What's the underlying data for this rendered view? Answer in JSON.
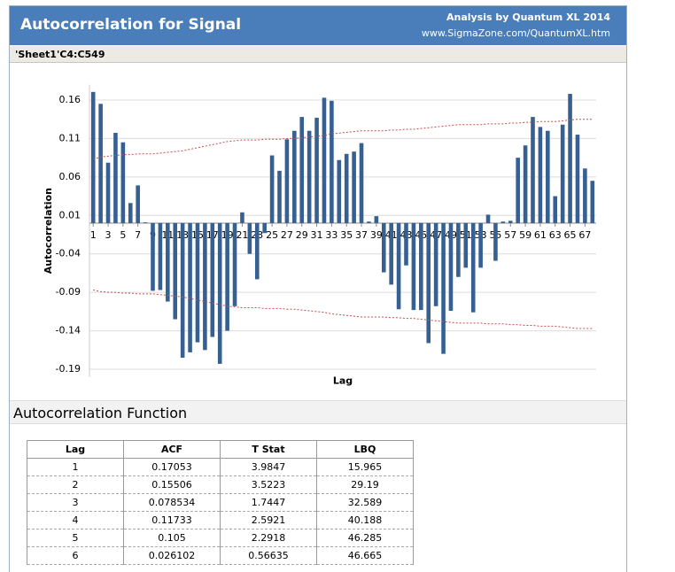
{
  "header": {
    "title": "Autocorrelation for Signal",
    "credit": "Analysis by Quantum XL 2014",
    "url": "www.SigmaZone.com/QuantumXL.htm"
  },
  "range": "'Sheet1'C4:C549",
  "chart_data": {
    "type": "bar",
    "xlabel": "Lag",
    "ylabel": "Autocorrelation",
    "x": [
      1,
      2,
      3,
      4,
      5,
      6,
      7,
      8,
      9,
      10,
      11,
      12,
      13,
      14,
      15,
      16,
      17,
      18,
      19,
      20,
      21,
      22,
      23,
      24,
      25,
      26,
      27,
      28,
      29,
      30,
      31,
      32,
      33,
      34,
      35,
      36,
      37,
      38,
      39,
      40,
      41,
      42,
      43,
      44,
      45,
      46,
      47,
      48,
      49,
      50,
      51,
      52,
      53,
      54,
      55,
      56,
      57,
      58,
      59,
      60,
      61,
      62,
      63,
      64,
      65,
      66,
      67,
      68
    ],
    "xlim": [
      0.5,
      68.5
    ],
    "xticks": [
      1,
      3,
      5,
      7,
      9,
      11,
      13,
      15,
      17,
      19,
      21,
      23,
      25,
      27,
      29,
      31,
      33,
      35,
      37,
      39,
      41,
      43,
      45,
      47,
      49,
      51,
      53,
      55,
      57,
      59,
      61,
      63,
      65,
      67
    ],
    "ylim": [
      -0.2,
      0.18
    ],
    "yticks": [
      0.16,
      0.11,
      0.06,
      0.01,
      -0.04,
      -0.09,
      -0.14,
      -0.19
    ],
    "grid": true,
    "series": [
      {
        "type": "bar",
        "color": "#376092",
        "values": [
          0.17053,
          0.15506,
          0.078534,
          0.11733,
          0.105,
          0.026102,
          0.049,
          0.001,
          -0.088,
          -0.087,
          -0.102,
          -0.125,
          -0.175,
          -0.168,
          -0.155,
          -0.165,
          -0.148,
          -0.183,
          -0.14,
          -0.108,
          0.014,
          -0.04,
          -0.073,
          -0.013,
          0.088,
          0.068,
          0.109,
          0.12,
          0.138,
          0.12,
          0.137,
          0.163,
          0.159,
          0.082,
          0.09,
          0.093,
          0.104,
          0.002,
          0.009,
          -0.064,
          -0.08,
          -0.112,
          -0.055,
          -0.113,
          -0.113,
          -0.156,
          -0.108,
          -0.17,
          -0.114,
          -0.07,
          -0.058,
          -0.116,
          -0.058,
          0.011,
          -0.049,
          0.002,
          0.003,
          0.085,
          0.101,
          0.138,
          0.125,
          0.12,
          0.035,
          0.128,
          0.168,
          0.115,
          0.071,
          0.055
        ]
      },
      {
        "type": "line",
        "color": "#c0504d",
        "values": [
          0.083,
          0.086,
          0.087,
          0.088,
          0.089,
          0.089,
          0.09,
          0.09,
          0.09,
          0.091,
          0.092,
          0.093,
          0.094,
          0.096,
          0.098,
          0.1,
          0.102,
          0.104,
          0.106,
          0.107,
          0.108,
          0.108,
          0.108,
          0.109,
          0.109,
          0.109,
          0.11,
          0.11,
          0.111,
          0.112,
          0.113,
          0.114,
          0.116,
          0.117,
          0.118,
          0.119,
          0.12,
          0.12,
          0.12,
          0.12,
          0.121,
          0.121,
          0.122,
          0.122,
          0.123,
          0.124,
          0.125,
          0.126,
          0.127,
          0.128,
          0.128,
          0.128,
          0.128,
          0.129,
          0.129,
          0.129,
          0.13,
          0.13,
          0.131,
          0.131,
          0.132,
          0.132,
          0.132,
          0.133,
          0.134,
          0.135,
          0.135,
          0.135
        ]
      },
      {
        "type": "line",
        "color": "#c0504d",
        "values": [
          -0.087,
          -0.089,
          -0.09,
          -0.09,
          -0.091,
          -0.091,
          -0.092,
          -0.092,
          -0.092,
          -0.093,
          -0.094,
          -0.095,
          -0.096,
          -0.098,
          -0.1,
          -0.102,
          -0.104,
          -0.106,
          -0.108,
          -0.109,
          -0.11,
          -0.11,
          -0.11,
          -0.111,
          -0.111,
          -0.111,
          -0.112,
          -0.112,
          -0.113,
          -0.114,
          -0.115,
          -0.116,
          -0.118,
          -0.119,
          -0.12,
          -0.121,
          -0.122,
          -0.122,
          -0.122,
          -0.122,
          -0.123,
          -0.123,
          -0.124,
          -0.124,
          -0.125,
          -0.126,
          -0.127,
          -0.128,
          -0.129,
          -0.13,
          -0.13,
          -0.13,
          -0.13,
          -0.131,
          -0.131,
          -0.131,
          -0.132,
          -0.132,
          -0.133,
          -0.133,
          -0.134,
          -0.134,
          -0.134,
          -0.135,
          -0.136,
          -0.137,
          -0.137,
          -0.137
        ]
      }
    ]
  },
  "section": "Autocorrelation Function",
  "table": {
    "columns": [
      "Lag",
      "ACF",
      "T Stat",
      "LBQ"
    ],
    "rows": [
      [
        1,
        0.17053,
        3.9847,
        15.965
      ],
      [
        2,
        0.15506,
        3.5223,
        29.19
      ],
      [
        3,
        0.078534,
        1.7447,
        32.589
      ],
      [
        4,
        0.11733,
        2.5921,
        40.188
      ],
      [
        5,
        0.105,
        2.2918,
        46.285
      ],
      [
        6,
        0.026102,
        0.56635,
        46.665
      ]
    ]
  }
}
